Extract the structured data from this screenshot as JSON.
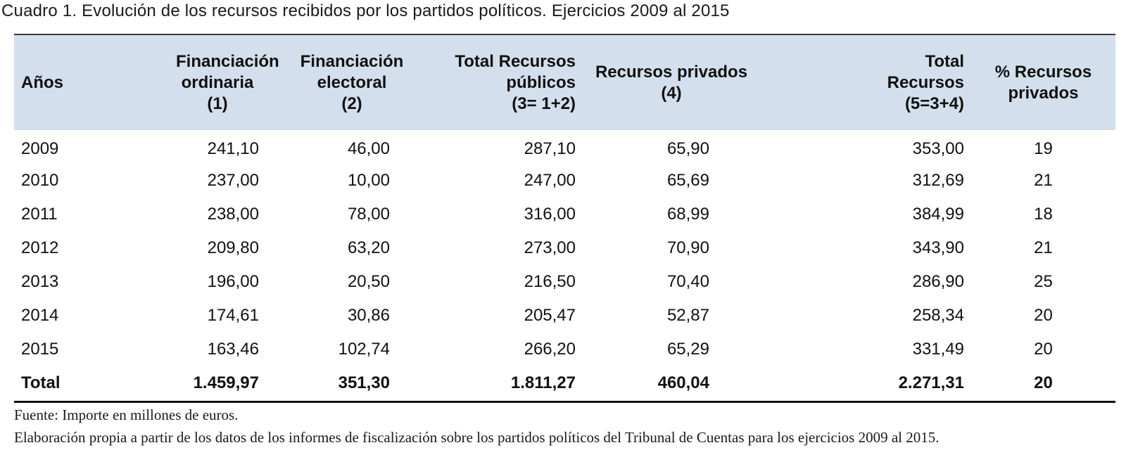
{
  "caption": "Cuadro 1. Evolución de los recursos recibidos por los partidos políticos. Ejercicios 2009 al 2015",
  "headers": [
    [
      "Años"
    ],
    [
      "Financiación",
      "ordinaria",
      "(1)"
    ],
    [
      "Financiación",
      "electoral",
      "(2)"
    ],
    [
      "Total Recursos",
      "públicos",
      "(3= 1+2)"
    ],
    [
      "Recursos privados",
      "(4)"
    ],
    [
      "Total",
      "Recursos",
      "(5=3+4)"
    ],
    [
      "% Recursos",
      "privados"
    ]
  ],
  "rows": [
    [
      "2009",
      "241,10",
      "46,00",
      "287,10",
      "65,90",
      "353,00",
      "19"
    ],
    [
      "2010",
      "237,00",
      "10,00",
      "247,00",
      "65,69",
      "312,69",
      "21"
    ],
    [
      "2011",
      "238,00",
      "78,00",
      "316,00",
      "68,99",
      "384,99",
      "18"
    ],
    [
      "2012",
      "209,80",
      "63,20",
      "273,00",
      "70,90",
      "343,90",
      "21"
    ],
    [
      "2013",
      "196,00",
      "20,50",
      "216,50",
      "70,40",
      "286,90",
      "25"
    ],
    [
      "2014",
      "174,61",
      "30,86",
      "205,47",
      "52,87",
      "258,34",
      "20"
    ],
    [
      "2015",
      "163,46",
      "102,74",
      "266,20",
      "65,29",
      "331,49",
      "20"
    ]
  ],
  "total": [
    "Total",
    "1.459,97",
    "351,30",
    "1.811,27",
    "460,04",
    "2.271,31",
    "20"
  ],
  "footnotes": [
    "Fuente: Importe en millones de euros.",
    "Elaboración propia a partir de los datos de los informes de fiscalización sobre los partidos políticos del Tribunal de Cuentas para los ejercicios 2009 al 2015."
  ]
}
